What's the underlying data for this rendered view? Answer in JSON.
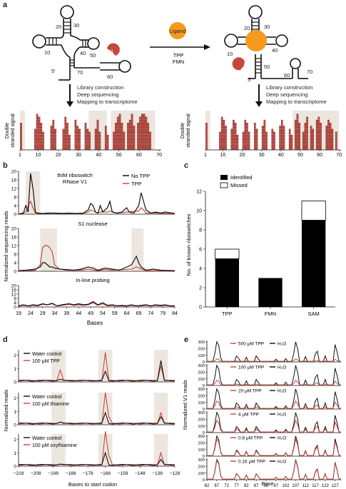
{
  "panel_a": {
    "letter": "a",
    "ligand_label": "Ligand",
    "ligand_names": [
      "TPP",
      "FMN"
    ],
    "v1_label": "V1",
    "left_struct_numbers": [
      "20",
      "30",
      "10",
      "40",
      "50",
      "5′",
      "70",
      "60"
    ],
    "right_struct_numbers": [
      "20",
      "30",
      "10",
      "40",
      "50",
      "5′",
      "60",
      "70"
    ],
    "steps": [
      "Library construction",
      "Deep sequencing",
      "Mapping to transcriptome"
    ],
    "ylabel_line1": "Double",
    "ylabel_line2": "stranded signal",
    "x_ticks": [
      "1",
      "10",
      "20",
      "30",
      "40",
      "50",
      "60",
      "70"
    ]
  },
  "panel_b": {
    "letter": "b",
    "subtitle_line1": "thiM riboswitch",
    "subtitle_line2": "RNase V1",
    "legend": [
      "No TPP",
      "TPP"
    ],
    "sub_labels": [
      "S1 nuclease",
      "In-line probing"
    ],
    "y_ticks": [
      "0",
      "4",
      "8",
      "12",
      "16",
      "20"
    ],
    "ylabel": "Normalized sequencing reads",
    "x_ticks": [
      "19",
      "24",
      "29",
      "34",
      "39",
      "44",
      "49",
      "54",
      "59",
      "64",
      "69",
      "74",
      "79",
      "84"
    ],
    "xlabel": "Bases",
    "colors": {
      "no_tpp": "#111111",
      "tpp": "#c8473c",
      "shade": "#ece6df"
    }
  },
  "panel_c": {
    "letter": "c",
    "legend": [
      "Identified",
      "Missed"
    ],
    "ylabel": "No. of known riboswitches",
    "y_ticks": [
      "0",
      "2",
      "4",
      "6",
      "8",
      "10",
      "12"
    ],
    "categories": [
      "TPP",
      "FMN",
      "SAM"
    ]
  },
  "panel_d": {
    "letter": "d",
    "legends": [
      [
        "Water control",
        "100 μM TPP"
      ],
      [
        "Water control",
        "100 μM thiamine"
      ],
      [
        "Water control",
        "100 μM oxythiamine"
      ]
    ],
    "y_ticks": [
      "0",
      "1",
      "2"
    ],
    "ylabel": "Normalized reads",
    "x_ticks": [
      "−218",
      "−208",
      "−198",
      "−188",
      "−178",
      "−168",
      "−158",
      "−148",
      "−138",
      "−128"
    ],
    "xlabel": "Bases to start codon"
  },
  "panel_e": {
    "letter": "e",
    "conditions": [
      "500 μM TPP",
      "100 μM TPP",
      "20 μM TPP",
      "4 μM TPP",
      "0.8 μM TPP",
      "0.16 μM TPP"
    ],
    "h2o_label": "H₂O",
    "y_ticks": [
      "0",
      "100",
      "200",
      "300"
    ],
    "ylabel": "Normalized V1 reads",
    "x_ticks": [
      "62",
      "67",
      "72",
      "77",
      "82",
      "87",
      "92",
      "97",
      "102",
      "107",
      "112",
      "117",
      "122",
      "127"
    ],
    "xlabel": "Base"
  },
  "chart_data": [
    {
      "type": "bar",
      "title": "",
      "xlabel": "",
      "ylabel": "No. of known riboswitches",
      "categories": [
        "TPP",
        "FMN",
        "SAM"
      ],
      "series": [
        {
          "name": "Identified",
          "values": [
            5,
            3,
            9
          ]
        },
        {
          "name": "Missed",
          "values": [
            1,
            0,
            2
          ]
        }
      ],
      "ylim": [
        0,
        12
      ],
      "legend": "top-left"
    }
  ]
}
